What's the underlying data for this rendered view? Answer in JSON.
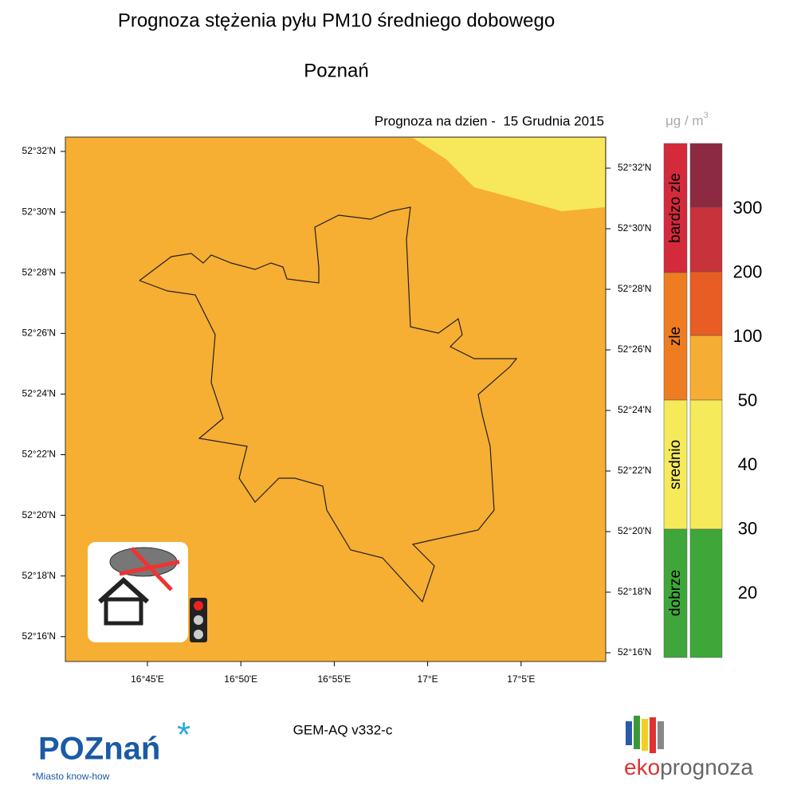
{
  "header": {
    "title": "Prognoza stężenia pyłu PM10 średniego dobowego",
    "subtitle": "Poznań",
    "date": "Prognoza na dzien -  15 Grudnia 2015"
  },
  "unit": {
    "base": "μg / m",
    "exp": "3"
  },
  "lat_labels_left": [
    "52°32'N",
    "52°30'N",
    "52°28'N",
    "52°26'N",
    "52°24'N",
    "52°22'N",
    "52°20'N",
    "52°18'N",
    "52°16'N"
  ],
  "lat_labels_right": [
    "52°32'N",
    "52°30'N",
    "52°28'N",
    "52°26'N",
    "52°24'N",
    "52°22'N",
    "52°20'N",
    "52°18'N",
    "52°16'N"
  ],
  "lon_labels": [
    "16°45'E",
    "16°50'E",
    "16°55'E",
    "17°E",
    "17°5'E"
  ],
  "legend": {
    "categories": [
      "bardzo zle",
      "zle",
      "srednio",
      "dobrze"
    ],
    "scale": [
      "300",
      "200",
      "100",
      "50",
      "40",
      "30",
      "20"
    ]
  },
  "model": "GEM-AQ v332-c",
  "logo_left": {
    "name": "POZnań",
    "star": "*",
    "tagline": "*Miasto know-how"
  },
  "logo_right": {
    "part1": "eko",
    "part2": "prognoza"
  }
}
